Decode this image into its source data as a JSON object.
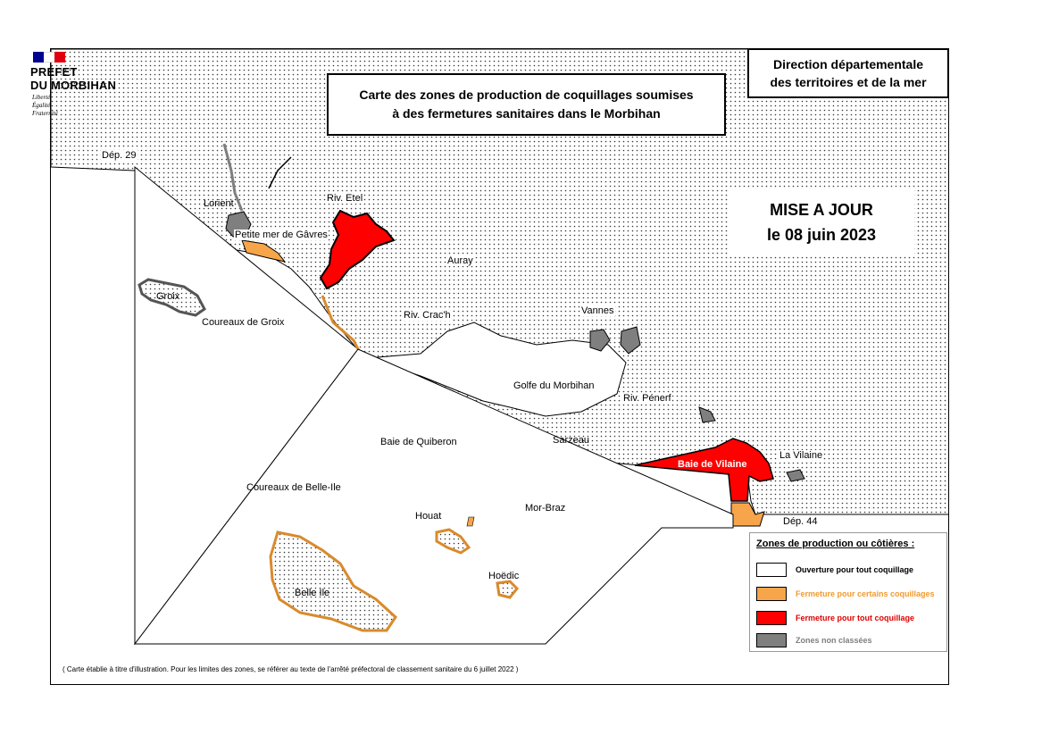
{
  "logo": {
    "line1": "PRÉFET",
    "line2": "DU MORBIHAN",
    "motto": [
      "Liberté",
      "Égalité",
      "Fraternité"
    ],
    "flag_colors": [
      "#000091",
      "#ffffff",
      "#e1000f"
    ]
  },
  "title": {
    "line1": "Carte des zones de production de coquillages soumises",
    "line2": "à des fermetures sanitaires dans le Morbihan"
  },
  "agency": {
    "line1": "Direction départementale",
    "line2": "des territoires et de la mer"
  },
  "update": {
    "line1": "MISE A JOUR",
    "line2": "le 08 juin 2023"
  },
  "places": {
    "dep29": "Dép. 29",
    "lorient": "Lorient",
    "gavres": "Petite mer de Gâvres",
    "etel": "Riv. Etel",
    "groix": "Groix",
    "coureaux_groix": "Coureaux de Groix",
    "auray": "Auray",
    "crach": "Riv. Crac'h",
    "vannes": "Vannes",
    "golfe": "Golfe du Morbihan",
    "penerf": "Riv. Pénerf",
    "sarzeau": "Sarzeau",
    "quiberon": "Baie de Quiberon",
    "vilaine_bay": "Baie de Vilaine",
    "vilaine": "La Vilaine",
    "coureaux_belle_ile": "Coureaux de Belle-Ile",
    "mor_braz": "Mor-Braz",
    "houat": "Houat",
    "hoedic": "Hoëdic",
    "belle_ile": "Belle Ile",
    "dep44": "Dép. 44"
  },
  "legend": {
    "title": "Zones de production ou côtières :",
    "items": [
      {
        "label": "Ouverture pour tout coquillage",
        "color": "#ffffff",
        "text_color": "#000000"
      },
      {
        "label": "Fermeture pour certains coquillages",
        "color": "#f7a54a",
        "text_color": "#f29a2e"
      },
      {
        "label": "Fermeture pour tout coquillage",
        "color": "#ff0000",
        "text_color": "#e00000"
      },
      {
        "label": "Zones non classées",
        "color": "#7f7f7f",
        "text_color": "#7f7f7f"
      }
    ]
  },
  "footnote": "( Carte établie à titre d'illustration. Pour les limites des zones, se référer au texte de l'arrêté préfectoral de classement sanitaire du 6 juillet 2022 )",
  "colors": {
    "open": "#ffffff",
    "partial_closure": "#f7a54a",
    "full_closure": "#ff0000",
    "unclassified": "#7f7f7f"
  }
}
